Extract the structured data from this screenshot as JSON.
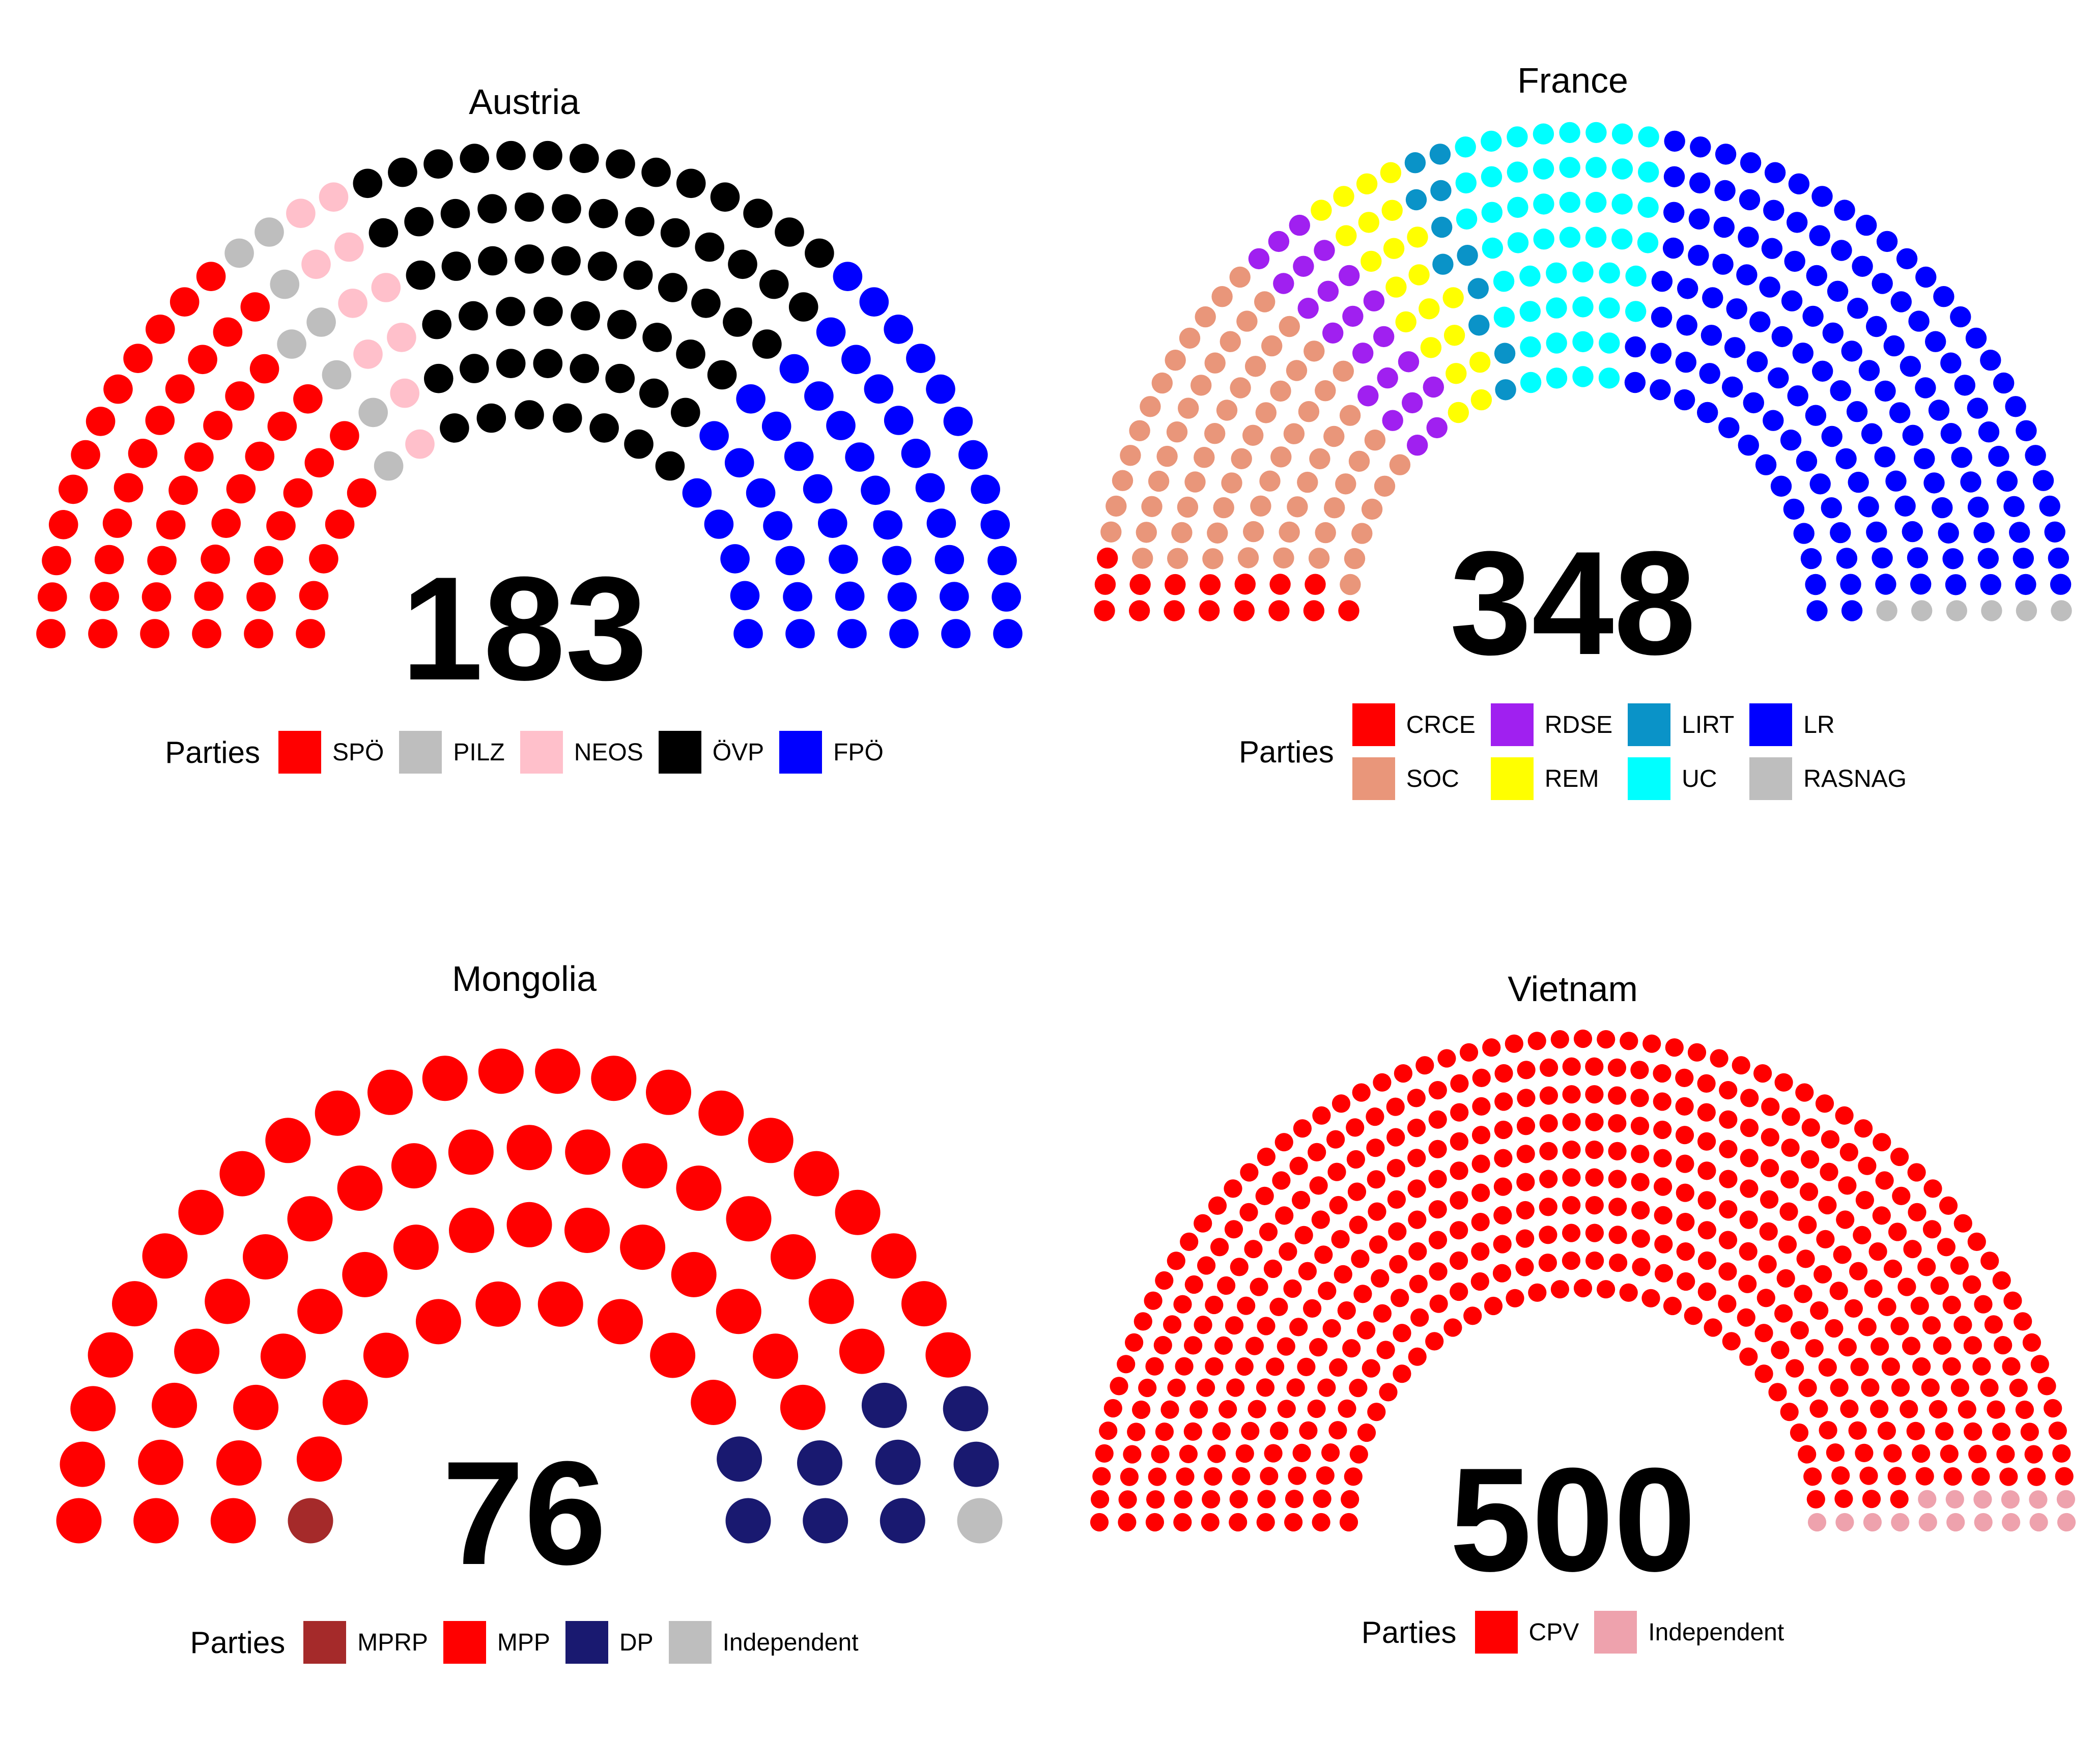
{
  "chart_data": [
    {
      "type": "parliament",
      "title": "Austria",
      "total": "183",
      "legend_title": "Parties",
      "legend_rows": 1,
      "series": [
        {
          "name": "SPÖ",
          "seats": 52,
          "color": "#ff0000"
        },
        {
          "name": "PILZ",
          "seats": 8,
          "color": "#bebebe"
        },
        {
          "name": "NEOS",
          "seats": 10,
          "color": "#ffc0cb"
        },
        {
          "name": "ÖVP",
          "seats": 62,
          "color": "#000000"
        },
        {
          "name": "FPÖ",
          "seats": 51,
          "color": "#0000ff"
        }
      ]
    },
    {
      "type": "parliament",
      "title": "France",
      "total": "348",
      "legend_title": "Parties",
      "legend_rows": 2,
      "series": [
        {
          "name": "CRCE",
          "seats": 16,
          "color": "#ff0000"
        },
        {
          "name": "SOC",
          "seats": 73,
          "color": "#e9967a"
        },
        {
          "name": "RDSE",
          "seats": 22,
          "color": "#a020f0"
        },
        {
          "name": "REM",
          "seats": 21,
          "color": "#ffff00"
        },
        {
          "name": "LIRT",
          "seats": 11,
          "color": "#0a93c8"
        },
        {
          "name": "UC",
          "seats": 51,
          "color": "#00ffff"
        },
        {
          "name": "LR",
          "seats": 148,
          "color": "#0000ff"
        },
        {
          "name": "RASNAG",
          "seats": 6,
          "color": "#bebebe"
        }
      ]
    },
    {
      "type": "parliament",
      "title": "Mongolia",
      "total": "76",
      "legend_title": "Parties",
      "legend_rows": 1,
      "series": [
        {
          "name": "MPRP",
          "seats": 1,
          "color": "#a52a2a"
        },
        {
          "name": "MPP",
          "seats": 65,
          "color": "#ff0000"
        },
        {
          "name": "DP",
          "seats": 9,
          "color": "#191970"
        },
        {
          "name": "Independent",
          "seats": 1,
          "color": "#bebebe"
        }
      ]
    },
    {
      "type": "parliament",
      "title": "Vietnam",
      "total": "500",
      "legend_title": "Parties",
      "legend_rows": 1,
      "series": [
        {
          "name": "CPV",
          "seats": 484,
          "color": "#ff0000"
        },
        {
          "name": "Independent",
          "seats": 16,
          "color": "#eea2ad"
        }
      ]
    }
  ]
}
